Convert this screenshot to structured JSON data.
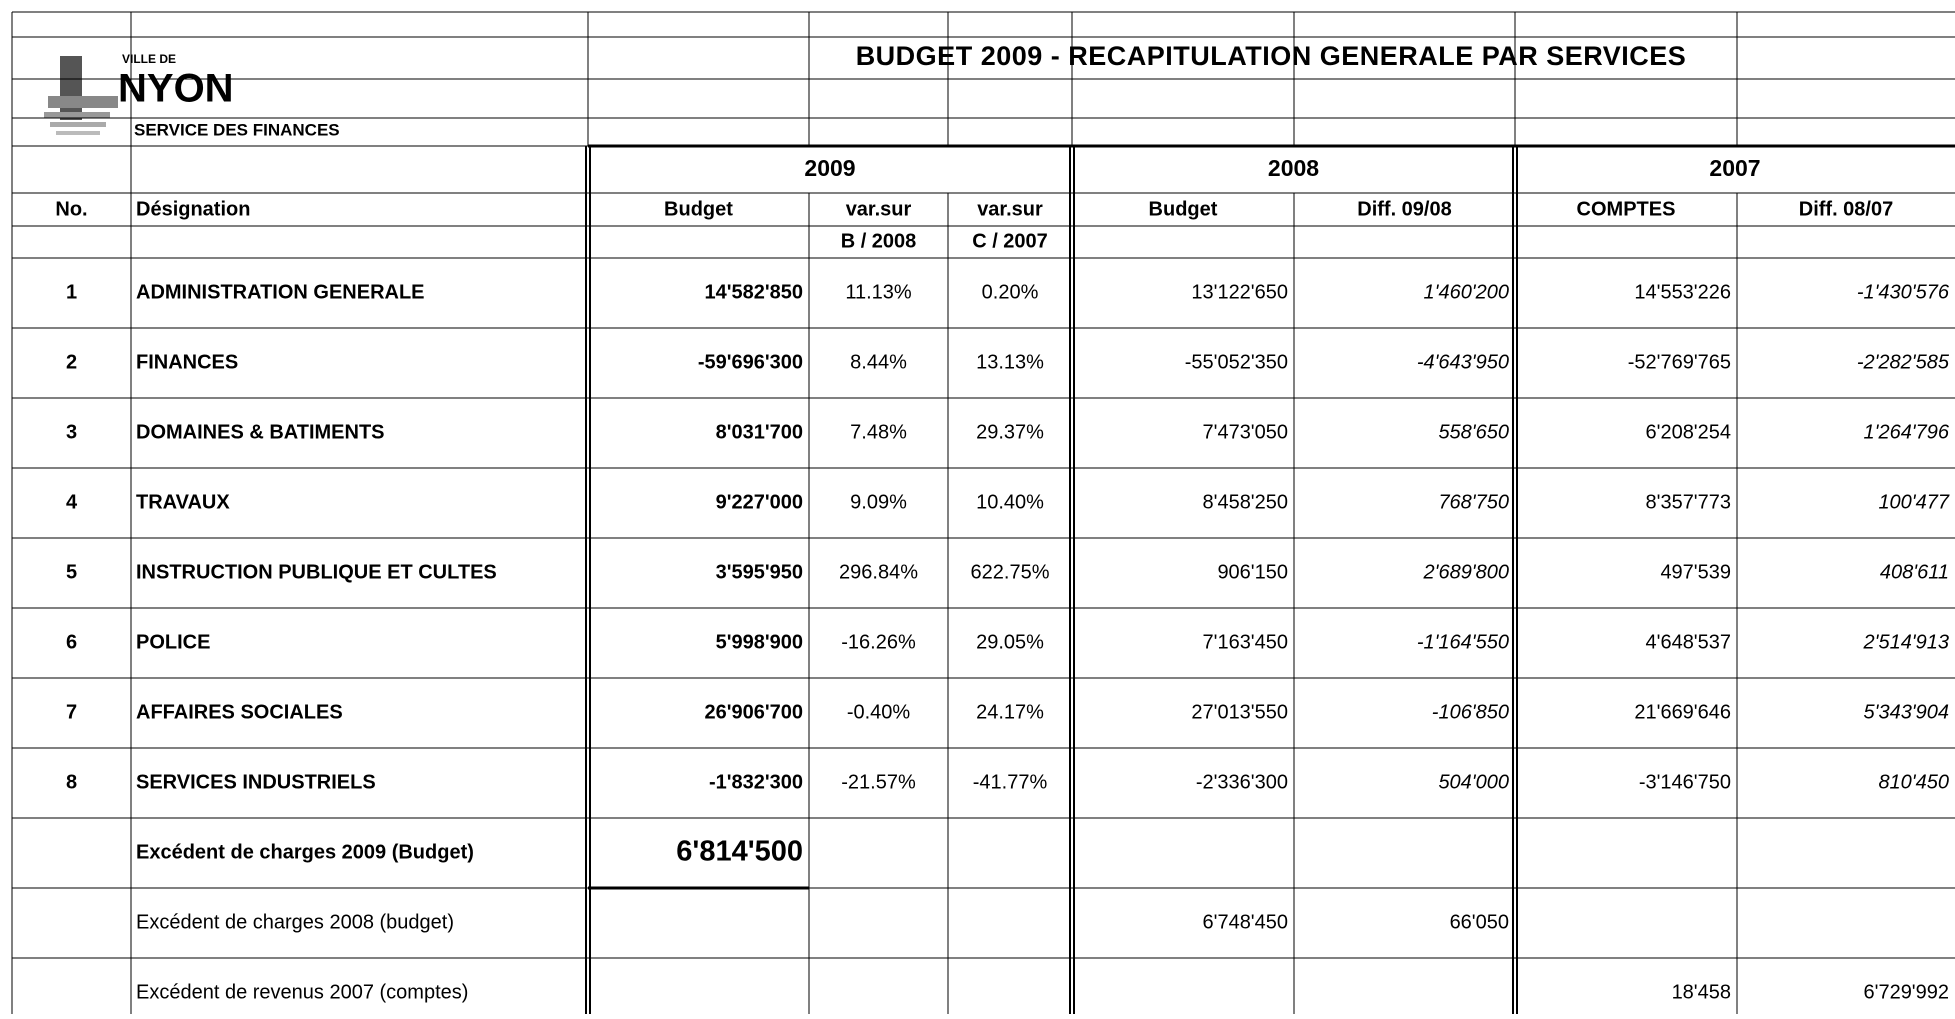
{
  "header": {
    "logo_small": "VILLE DE",
    "logo": "NYON",
    "department": "SERVICE DES FINANCES",
    "title": "BUDGET 2009 -  RECAPITULATION GENERALE PAR SERVICES"
  },
  "years": [
    "2009",
    "2008",
    "2007"
  ],
  "columns": [
    "No.",
    "Désignation",
    "Budget",
    "var.sur",
    "var.sur",
    "Budget",
    "Diff. 09/08",
    "COMPTES",
    "Diff. 08/07"
  ],
  "subcolumns": {
    "3": "B / 2008",
    "4": "C / 2007"
  },
  "rows": [
    [
      "1",
      "ADMINISTRATION GENERALE",
      "14'582'850",
      "11.13%",
      "0.20%",
      "13'122'650",
      "1'460'200",
      "14'553'226",
      "-1'430'576"
    ],
    [
      "2",
      "FINANCES",
      "-59'696'300",
      "8.44%",
      "13.13%",
      "-55'052'350",
      "-4'643'950",
      "-52'769'765",
      "-2'282'585"
    ],
    [
      "3",
      "DOMAINES & BATIMENTS",
      "8'031'700",
      "7.48%",
      "29.37%",
      "7'473'050",
      "558'650",
      "6'208'254",
      "1'264'796"
    ],
    [
      "4",
      "TRAVAUX",
      "9'227'000",
      "9.09%",
      "10.40%",
      "8'458'250",
      "768'750",
      "8'357'773",
      "100'477"
    ],
    [
      "5",
      "INSTRUCTION PUBLIQUE ET CULTES",
      "3'595'950",
      "296.84%",
      "622.75%",
      "906'150",
      "2'689'800",
      "497'539",
      "408'611"
    ],
    [
      "6",
      "POLICE",
      "5'998'900",
      "-16.26%",
      "29.05%",
      "7'163'450",
      "-1'164'550",
      "4'648'537",
      "2'514'913"
    ],
    [
      "7",
      "AFFAIRES SOCIALES",
      "26'906'700",
      "-0.40%",
      "24.17%",
      "27'013'550",
      "-106'850",
      "21'669'646",
      "5'343'904"
    ],
    [
      "8",
      "SERVICES INDUSTRIELS",
      "-1'832'300",
      "-21.57%",
      "-41.77%",
      "-2'336'300",
      "504'000",
      "-3'146'750",
      "810'450"
    ]
  ],
  "summary": [
    {
      "label": "Excédent de charges 2009 (Budget)",
      "budget_2009": "6'814'500"
    },
    {
      "label": "Excédent de charges 2008 (budget)",
      "budget_2008": "6'748'450",
      "diff_09_08": "66'050"
    },
    {
      "label": "Excédent de revenus 2007 (comptes)",
      "comptes_2007": "18'458",
      "diff_08_07": "6'729'992"
    }
  ]
}
